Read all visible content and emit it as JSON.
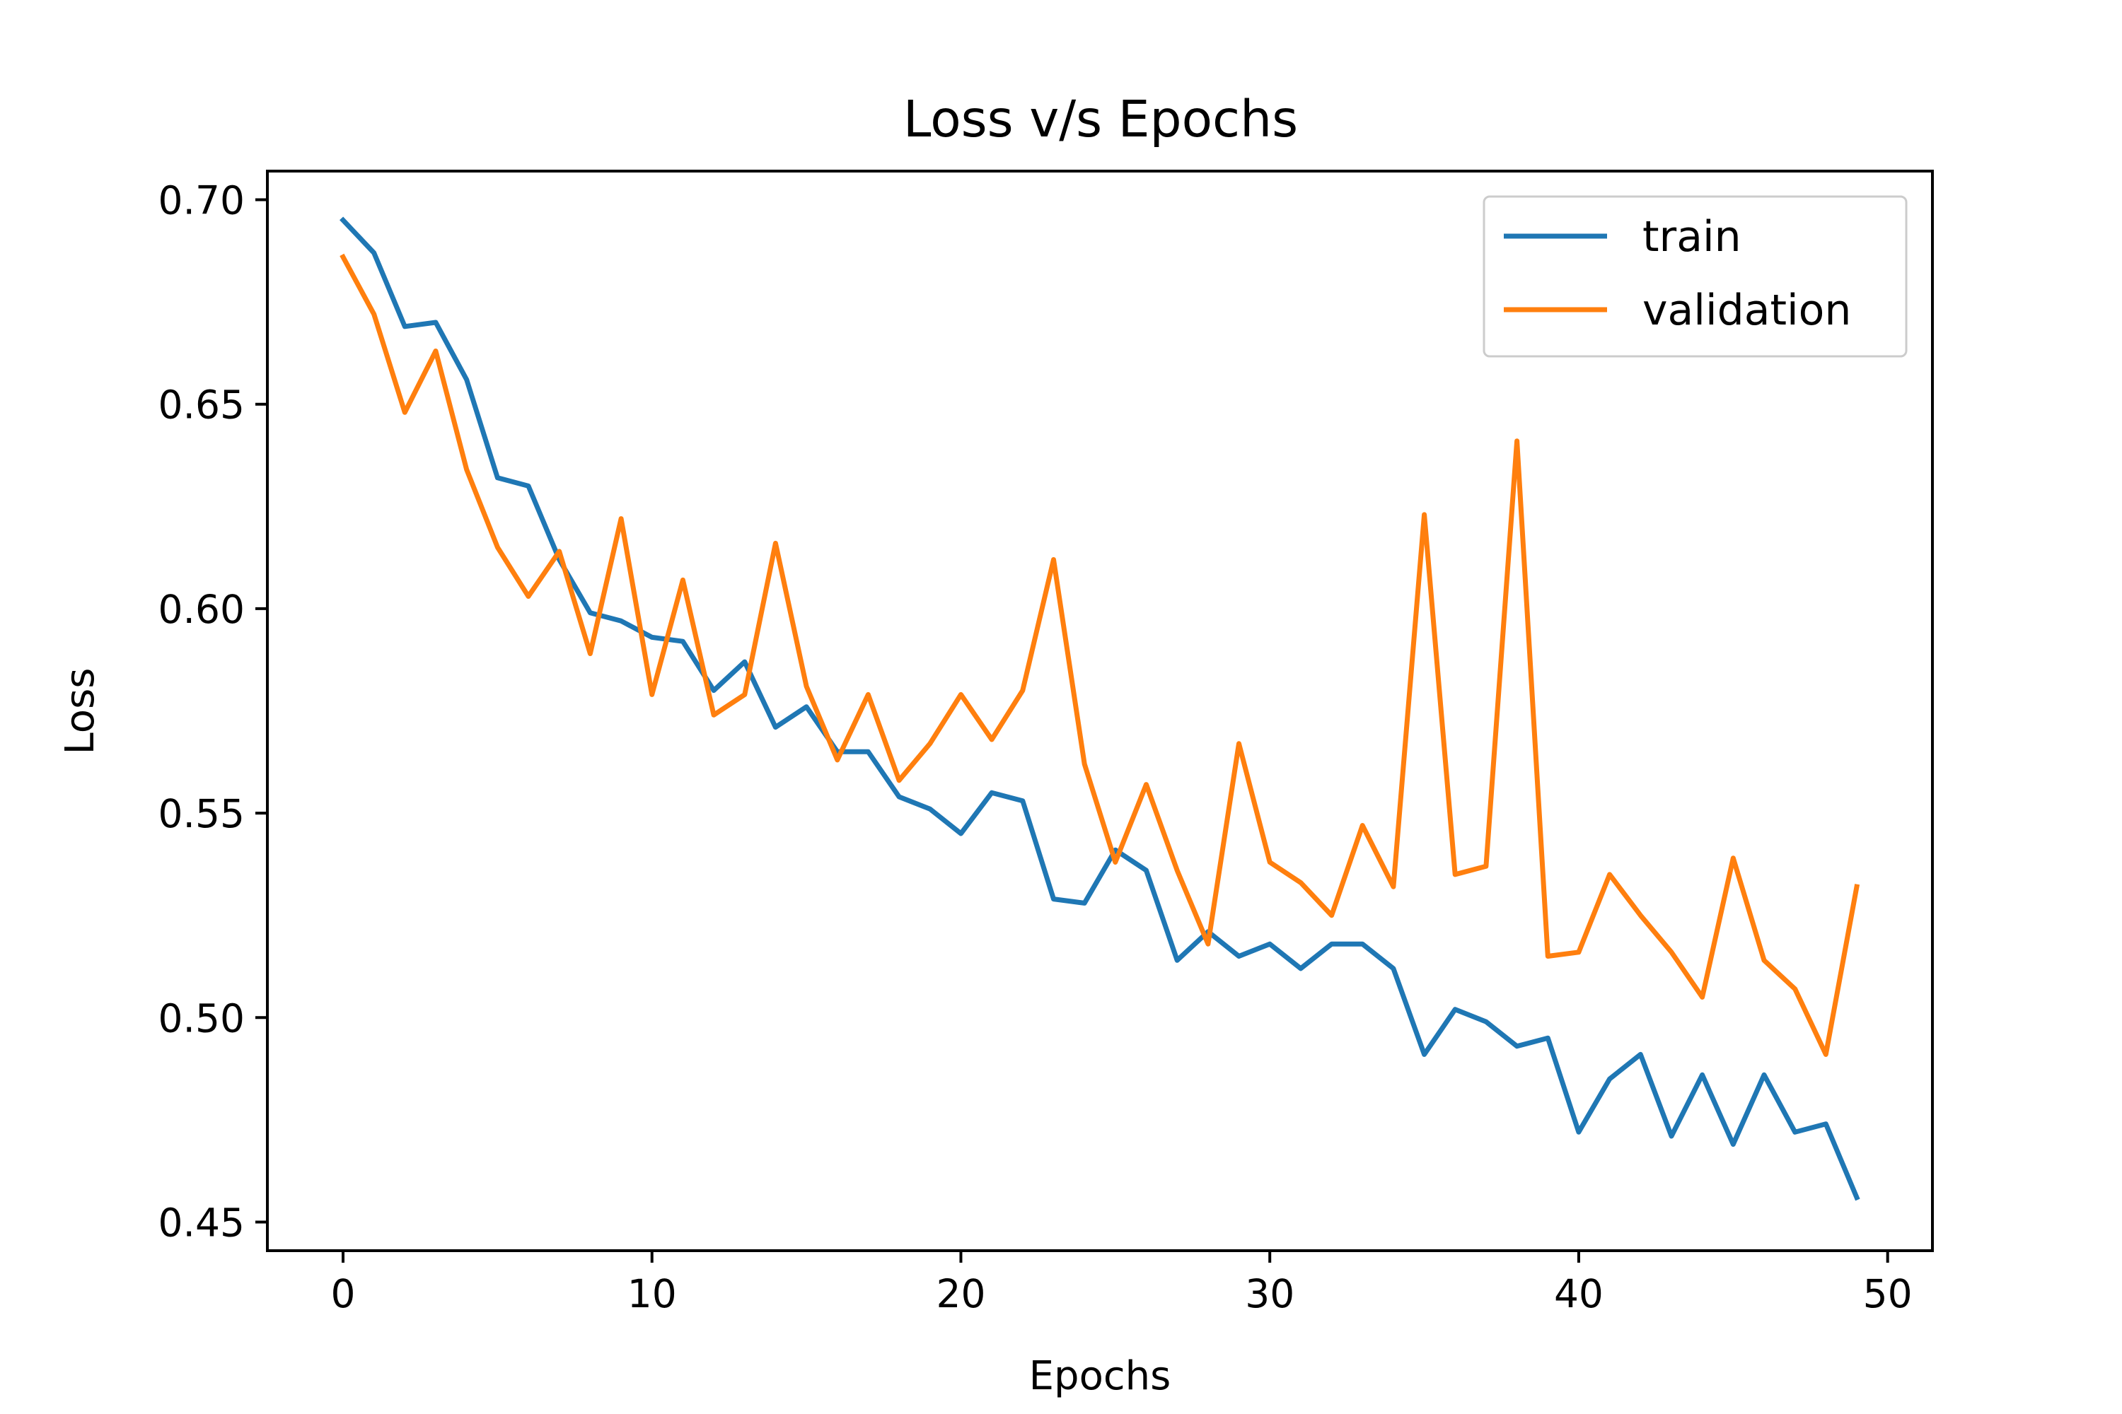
{
  "chart_data": {
    "type": "line",
    "title": "Loss v/s Epochs",
    "xlabel": "Epochs",
    "ylabel": "Loss",
    "xlim": [
      -2.45,
      51.45
    ],
    "ylim": [
      0.443,
      0.707
    ],
    "xticks": [
      0,
      10,
      20,
      30,
      40,
      50
    ],
    "yticks": [
      0.45,
      0.5,
      0.55,
      0.6,
      0.65,
      0.7
    ],
    "xtick_labels": [
      "0",
      "10",
      "20",
      "30",
      "40",
      "50"
    ],
    "ytick_labels": [
      "0.45",
      "0.50",
      "0.55",
      "0.60",
      "0.65",
      "0.70"
    ],
    "grid": false,
    "legend_position": "top-right",
    "x": [
      0,
      1,
      2,
      3,
      4,
      5,
      6,
      7,
      8,
      9,
      10,
      11,
      12,
      13,
      14,
      15,
      16,
      17,
      18,
      19,
      20,
      21,
      22,
      23,
      24,
      25,
      26,
      27,
      28,
      29,
      30,
      31,
      32,
      33,
      34,
      35,
      36,
      37,
      38,
      39,
      40,
      41,
      42,
      43,
      44,
      45,
      46,
      47,
      48,
      49
    ],
    "series": [
      {
        "name": "train",
        "color": "#1f77b4",
        "values": [
          0.695,
          0.687,
          0.669,
          0.67,
          0.656,
          0.632,
          0.63,
          0.612,
          0.599,
          0.597,
          0.593,
          0.592,
          0.58,
          0.587,
          0.571,
          0.576,
          0.565,
          0.565,
          0.554,
          0.551,
          0.545,
          0.555,
          0.553,
          0.529,
          0.528,
          0.541,
          0.536,
          0.514,
          0.521,
          0.515,
          0.518,
          0.512,
          0.518,
          0.518,
          0.512,
          0.491,
          0.502,
          0.499,
          0.493,
          0.495,
          0.472,
          0.485,
          0.491,
          0.471,
          0.486,
          0.469,
          0.486,
          0.472,
          0.474,
          0.456
        ]
      },
      {
        "name": "validation",
        "color": "#ff7f0e",
        "values": [
          0.686,
          0.672,
          0.648,
          0.663,
          0.634,
          0.615,
          0.603,
          0.614,
          0.589,
          0.622,
          0.579,
          0.607,
          0.574,
          0.579,
          0.616,
          0.581,
          0.563,
          0.579,
          0.558,
          0.567,
          0.579,
          0.568,
          0.58,
          0.612,
          0.562,
          0.538,
          0.557,
          0.536,
          0.518,
          0.567,
          0.538,
          0.533,
          0.525,
          0.547,
          0.532,
          0.623,
          0.535,
          0.537,
          0.641,
          0.515,
          0.516,
          0.535,
          0.525,
          0.516,
          0.505,
          0.539,
          0.514,
          0.507,
          0.491,
          0.532
        ]
      }
    ]
  }
}
